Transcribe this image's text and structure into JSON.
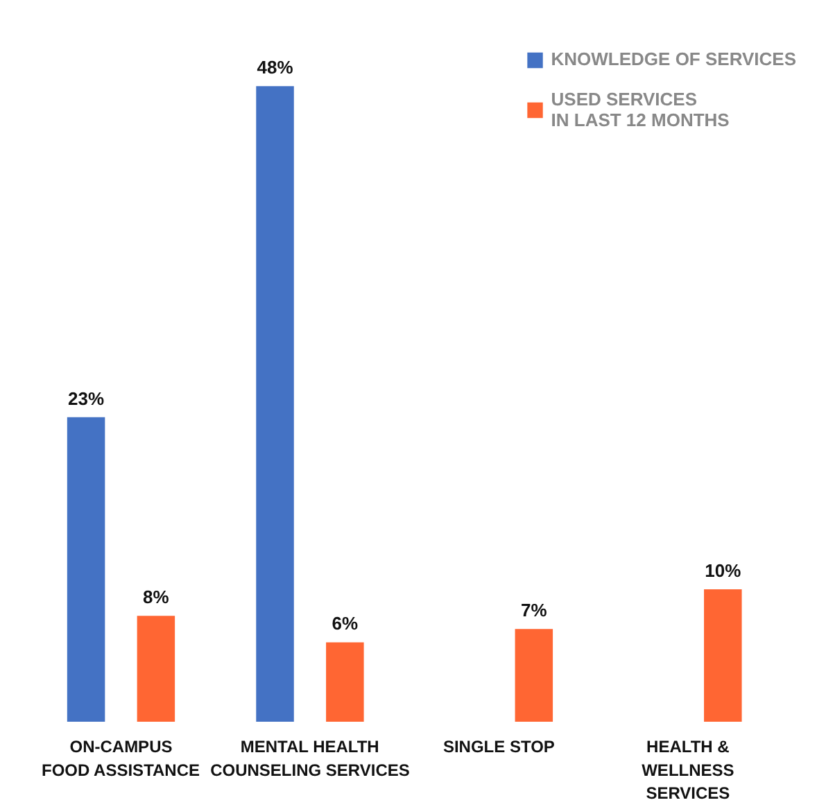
{
  "chart_data": {
    "type": "bar",
    "categories": [
      "ON-CAMPUS\nFOOD ASSISTANCE",
      "MENTAL HEALTH\nCOUNSELING SERVICES",
      "SINGLE STOP",
      "HEALTH &\nWELLNESS\nSERVICES"
    ],
    "series": [
      {
        "name": "KNOWLEDGE OF SERVICES",
        "color": "#4472c4",
        "values": [
          23,
          48,
          null,
          null
        ],
        "value_labels": [
          "23%",
          "48%",
          null,
          null
        ]
      },
      {
        "name": "USED SERVICES\nIN LAST 12 MONTHS",
        "color": "#ff6633",
        "values": [
          8,
          6,
          7,
          10
        ],
        "value_labels": [
          "8%",
          "6%",
          "7%",
          "10%"
        ]
      }
    ],
    "grid": false,
    "legend": "top right"
  }
}
